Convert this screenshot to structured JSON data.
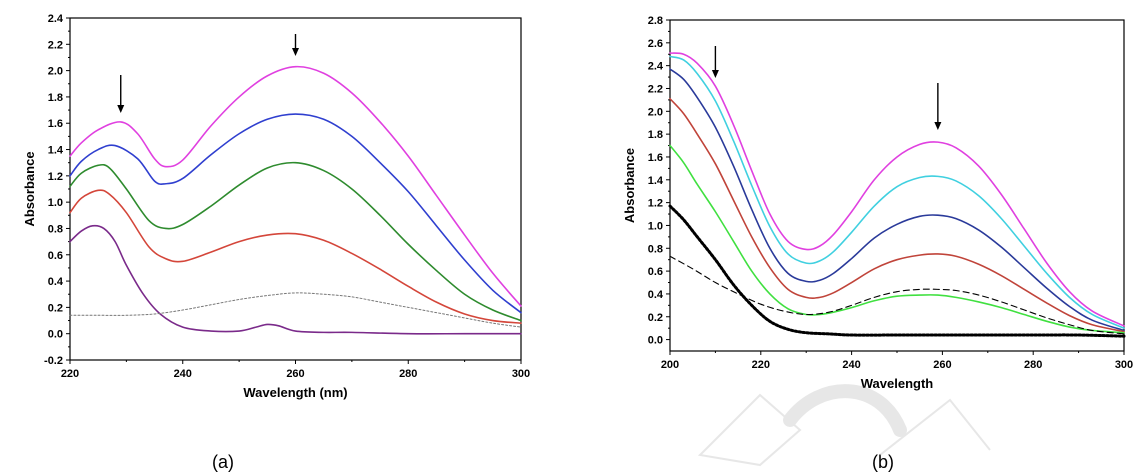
{
  "chart_data": [
    {
      "type": "line",
      "panel_label": "(a)",
      "xlabel": "Wavelength (nm)",
      "ylabel": "Absorbance",
      "xlim": [
        220,
        300
      ],
      "ylim": [
        -0.2,
        2.4
      ],
      "xticks": [
        220,
        240,
        260,
        280,
        300
      ],
      "yticks": [
        -0.2,
        0.0,
        0.2,
        0.4,
        0.6,
        0.8,
        1.0,
        1.2,
        1.4,
        1.6,
        1.8,
        2.0,
        2.2,
        2.4
      ],
      "grid": false,
      "arrows_at_x": [
        229,
        260
      ],
      "series": [
        {
          "color": "#e040e0",
          "dash": "solid",
          "x": [
            220,
            222,
            225,
            229,
            232,
            235,
            237,
            240,
            245,
            250,
            255,
            260,
            265,
            270,
            275,
            280,
            285,
            290,
            295,
            300
          ],
          "y": [
            1.35,
            1.45,
            1.55,
            1.61,
            1.52,
            1.33,
            1.27,
            1.32,
            1.58,
            1.8,
            1.96,
            2.03,
            1.98,
            1.83,
            1.61,
            1.35,
            1.05,
            0.75,
            0.46,
            0.21
          ]
        },
        {
          "color": "#2f3fcf",
          "dash": "solid",
          "x": [
            220,
            222,
            225,
            228,
            232,
            235,
            237,
            240,
            245,
            250,
            255,
            260,
            265,
            270,
            275,
            280,
            285,
            290,
            295,
            300
          ],
          "y": [
            1.2,
            1.31,
            1.4,
            1.43,
            1.33,
            1.16,
            1.14,
            1.18,
            1.36,
            1.52,
            1.63,
            1.67,
            1.63,
            1.5,
            1.3,
            1.08,
            0.82,
            0.56,
            0.33,
            0.16
          ]
        },
        {
          "color": "#2e8b2e",
          "dash": "solid",
          "x": [
            220,
            222,
            225,
            227,
            230,
            234,
            237,
            240,
            245,
            250,
            255,
            260,
            265,
            270,
            275,
            280,
            285,
            290,
            295,
            300
          ],
          "y": [
            1.12,
            1.22,
            1.28,
            1.26,
            1.1,
            0.86,
            0.8,
            0.83,
            0.97,
            1.13,
            1.26,
            1.3,
            1.24,
            1.1,
            0.9,
            0.68,
            0.48,
            0.3,
            0.18,
            0.1
          ]
        },
        {
          "color": "#d4463a",
          "dash": "solid",
          "x": [
            220,
            222,
            225,
            227,
            230,
            234,
            237,
            240,
            245,
            250,
            255,
            260,
            265,
            270,
            275,
            280,
            285,
            290,
            295,
            300
          ],
          "y": [
            0.92,
            1.03,
            1.09,
            1.06,
            0.92,
            0.66,
            0.57,
            0.55,
            0.62,
            0.7,
            0.75,
            0.76,
            0.71,
            0.61,
            0.49,
            0.36,
            0.24,
            0.15,
            0.1,
            0.08
          ]
        },
        {
          "color": "#7a2a8a",
          "dash": "solid",
          "x": [
            220,
            222,
            224,
            226,
            228,
            230,
            233,
            236,
            240,
            245,
            250,
            253,
            255,
            257,
            260,
            265,
            270,
            280,
            290,
            300
          ],
          "y": [
            0.7,
            0.78,
            0.82,
            0.8,
            0.7,
            0.52,
            0.3,
            0.15,
            0.05,
            0.02,
            0.02,
            0.05,
            0.07,
            0.06,
            0.02,
            0.01,
            0.01,
            0.0,
            0.0,
            0.0
          ]
        },
        {
          "color": "#777777",
          "dash": "dotted",
          "x": [
            220,
            225,
            230,
            235,
            240,
            245,
            250,
            255,
            260,
            265,
            270,
            275,
            280,
            285,
            290,
            295,
            300
          ],
          "y": [
            0.14,
            0.14,
            0.14,
            0.15,
            0.18,
            0.22,
            0.26,
            0.29,
            0.31,
            0.3,
            0.28,
            0.24,
            0.2,
            0.16,
            0.12,
            0.08,
            0.05
          ]
        }
      ]
    },
    {
      "type": "line",
      "panel_label": "(b)",
      "xlabel": "Wavelength",
      "ylabel": "Absorbance",
      "xlim": [
        200,
        300
      ],
      "ylim": [
        -0.1,
        2.8
      ],
      "xticks": [
        200,
        220,
        240,
        260,
        280,
        300
      ],
      "yticks": [
        0.0,
        0.2,
        0.4,
        0.6,
        0.8,
        1.0,
        1.2,
        1.4,
        1.6,
        1.8,
        2.0,
        2.2,
        2.4,
        2.6,
        2.8
      ],
      "grid": false,
      "arrows_at_x": [
        210,
        259
      ],
      "series": [
        {
          "color": "#e040e0",
          "dash": "solid",
          "x": [
            200,
            203,
            206,
            210,
            214,
            218,
            222,
            226,
            230,
            233,
            236,
            240,
            245,
            250,
            255,
            259,
            263,
            268,
            273,
            278,
            283,
            288,
            293,
            300
          ],
          "y": [
            2.51,
            2.5,
            2.42,
            2.22,
            1.88,
            1.48,
            1.1,
            0.86,
            0.79,
            0.82,
            0.92,
            1.12,
            1.4,
            1.6,
            1.71,
            1.73,
            1.68,
            1.52,
            1.27,
            0.97,
            0.67,
            0.42,
            0.25,
            0.12
          ]
        },
        {
          "color": "#40d0e0",
          "dash": "solid",
          "x": [
            200,
            203,
            206,
            210,
            214,
            218,
            222,
            226,
            230,
            233,
            236,
            240,
            245,
            250,
            255,
            259,
            263,
            268,
            273,
            278,
            283,
            288,
            293,
            300
          ],
          "y": [
            2.48,
            2.45,
            2.33,
            2.09,
            1.74,
            1.35,
            0.99,
            0.75,
            0.67,
            0.69,
            0.77,
            0.94,
            1.17,
            1.34,
            1.42,
            1.43,
            1.39,
            1.26,
            1.06,
            0.82,
            0.58,
            0.37,
            0.22,
            0.1
          ]
        },
        {
          "color": "#2a3a9a",
          "dash": "solid",
          "x": [
            200,
            203,
            206,
            210,
            214,
            218,
            222,
            226,
            230,
            233,
            236,
            240,
            245,
            250,
            255,
            259,
            263,
            268,
            273,
            278,
            283,
            288,
            293,
            300
          ],
          "y": [
            2.37,
            2.28,
            2.12,
            1.86,
            1.52,
            1.14,
            0.8,
            0.58,
            0.51,
            0.52,
            0.58,
            0.71,
            0.89,
            1.01,
            1.08,
            1.09,
            1.06,
            0.96,
            0.81,
            0.63,
            0.45,
            0.29,
            0.17,
            0.08
          ]
        },
        {
          "color": "#c0443a",
          "dash": "solid",
          "x": [
            200,
            203,
            206,
            210,
            214,
            218,
            222,
            226,
            230,
            233,
            236,
            240,
            245,
            250,
            255,
            259,
            263,
            268,
            273,
            278,
            283,
            288,
            293,
            300
          ],
          "y": [
            2.11,
            1.98,
            1.8,
            1.54,
            1.22,
            0.9,
            0.63,
            0.44,
            0.37,
            0.37,
            0.41,
            0.5,
            0.62,
            0.7,
            0.74,
            0.75,
            0.73,
            0.66,
            0.56,
            0.44,
            0.32,
            0.21,
            0.13,
            0.07
          ]
        },
        {
          "color": "#40e040",
          "dash": "solid",
          "x": [
            200,
            203,
            206,
            210,
            214,
            218,
            222,
            226,
            230,
            233,
            236,
            240,
            245,
            250,
            255,
            259,
            263,
            268,
            273,
            278,
            283,
            288,
            293,
            300
          ],
          "y": [
            1.7,
            1.55,
            1.36,
            1.12,
            0.86,
            0.6,
            0.4,
            0.27,
            0.22,
            0.22,
            0.24,
            0.28,
            0.34,
            0.38,
            0.39,
            0.39,
            0.37,
            0.33,
            0.28,
            0.22,
            0.16,
            0.11,
            0.08,
            0.06
          ]
        },
        {
          "color": "#000000",
          "dash": "dotted",
          "x": [
            200,
            203,
            206,
            210,
            214,
            218,
            222,
            226,
            230,
            235,
            240,
            250,
            260,
            270,
            280,
            290,
            300
          ],
          "y": [
            1.17,
            1.05,
            0.9,
            0.7,
            0.48,
            0.3,
            0.16,
            0.09,
            0.06,
            0.05,
            0.04,
            0.04,
            0.04,
            0.04,
            0.04,
            0.04,
            0.03
          ]
        },
        {
          "color": "#000000",
          "dash": "dashed",
          "x": [
            200,
            205,
            210,
            215,
            220,
            225,
            230,
            235,
            240,
            245,
            250,
            255,
            259,
            263,
            268,
            273,
            278,
            283,
            288,
            293,
            300
          ],
          "y": [
            0.73,
            0.62,
            0.5,
            0.4,
            0.31,
            0.25,
            0.22,
            0.24,
            0.3,
            0.37,
            0.42,
            0.44,
            0.44,
            0.43,
            0.39,
            0.33,
            0.26,
            0.19,
            0.13,
            0.08,
            0.05
          ]
        }
      ]
    }
  ]
}
